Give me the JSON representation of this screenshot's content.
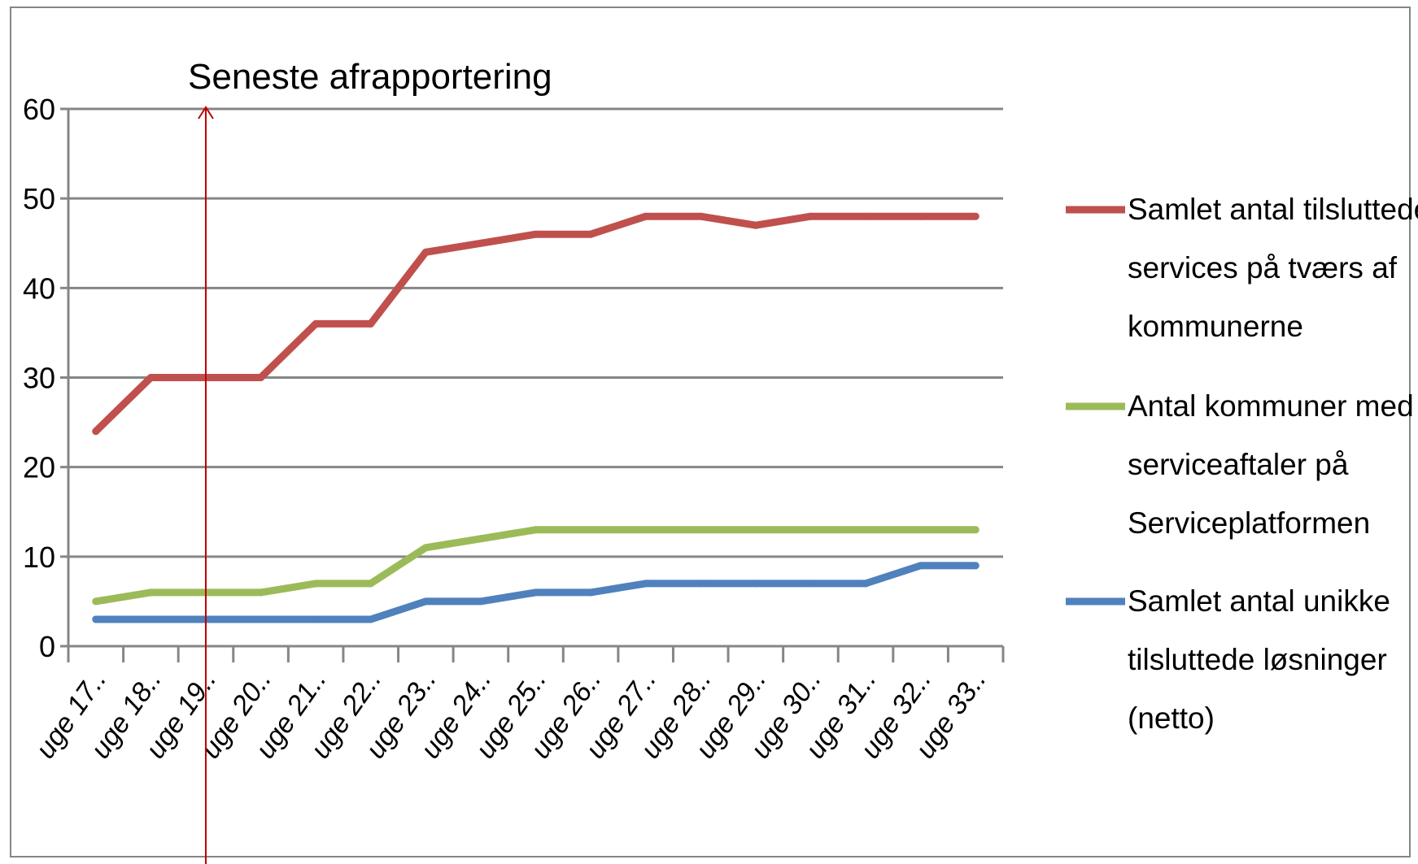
{
  "chart_data": {
    "type": "line",
    "title": "",
    "xlabel": "",
    "ylabel": "",
    "categories": [
      "uge 17..",
      "uge 18..",
      "uge 19..",
      "uge 20..",
      "uge 21..",
      "uge 22..",
      "uge 23..",
      "uge 24..",
      "uge 25..",
      "uge 26..",
      "uge 27..",
      "uge 28..",
      "uge 29..",
      "uge 30..",
      "uge 31..",
      "uge 32..",
      "uge 33.."
    ],
    "ylim": [
      0,
      60
    ],
    "yticks": [
      "0",
      "10",
      "20",
      "30",
      "40",
      "50",
      "60"
    ],
    "grid": true,
    "legend_position": "right",
    "series": [
      {
        "name": "Samlet antal tilsluttede services på tværs af kommunerne",
        "legend_lines": [
          "Samlet antal tilsluttede",
          "services på tværs af",
          "kommunerne"
        ],
        "color": "#c0504d",
        "values": [
          24,
          30,
          30,
          30,
          36,
          36,
          44,
          45,
          46,
          46,
          48,
          48,
          47,
          48,
          48,
          48,
          48
        ]
      },
      {
        "name": "Antal kommuner med serviceaftaler på Serviceplatformen",
        "legend_lines": [
          "Antal kommuner med",
          "serviceaftaler på",
          "Serviceplatformen"
        ],
        "color": "#9bbb59",
        "values": [
          5,
          6,
          6,
          6,
          7,
          7,
          11,
          12,
          13,
          13,
          13,
          13,
          13,
          13,
          13,
          13,
          13
        ]
      },
      {
        "name": "Samlet antal unikke tilsluttede løsninger (netto)",
        "legend_lines": [
          "Samlet antal unikke",
          "tilsluttede løsninger",
          "(netto)"
        ],
        "color": "#4f81bd",
        "values": [
          3,
          3,
          3,
          3,
          3,
          3,
          5,
          5,
          6,
          6,
          7,
          7,
          7,
          7,
          7,
          9,
          9
        ]
      }
    ],
    "annotation": {
      "text": "Seneste afrapportering",
      "color": "#c00000",
      "at_category_index": 2.5
    }
  }
}
